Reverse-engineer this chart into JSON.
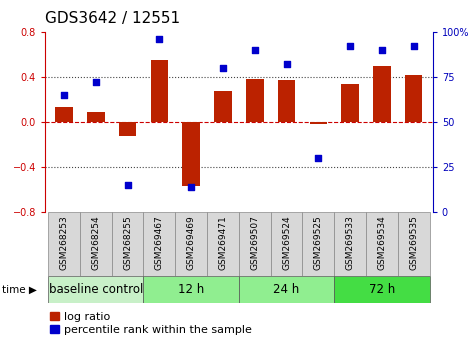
{
  "title": "GDS3642 / 12551",
  "samples": [
    "GSM268253",
    "GSM268254",
    "GSM268255",
    "GSM269467",
    "GSM269469",
    "GSM269471",
    "GSM269507",
    "GSM269524",
    "GSM269525",
    "GSM269533",
    "GSM269534",
    "GSM269535"
  ],
  "log_ratio": [
    0.13,
    0.09,
    -0.12,
    0.55,
    -0.57,
    0.28,
    0.38,
    0.37,
    -0.02,
    0.34,
    0.5,
    0.42
  ],
  "percentile_rank": [
    65,
    72,
    15,
    96,
    14,
    80,
    90,
    82,
    30,
    92,
    90,
    92
  ],
  "groups": [
    {
      "label": "baseline control",
      "start": 0,
      "end": 3,
      "color": "#c8f0c8"
    },
    {
      "label": "12 h",
      "start": 3,
      "end": 6,
      "color": "#90ee90"
    },
    {
      "label": "24 h",
      "start": 6,
      "end": 9,
      "color": "#90ee90"
    },
    {
      "label": "72 h",
      "start": 9,
      "end": 12,
      "color": "#44dd44"
    }
  ],
  "bar_color": "#bb2200",
  "dot_color": "#0000cc",
  "ylim_left": [
    -0.8,
    0.8
  ],
  "ylim_right": [
    0,
    100
  ],
  "yticks_left": [
    -0.8,
    -0.4,
    0.0,
    0.4,
    0.8
  ],
  "yticks_right": [
    0,
    25,
    50,
    75,
    100
  ],
  "ytick_labels_right": [
    "0",
    "25",
    "50",
    "75",
    "100%"
  ],
  "left_color": "#cc0000",
  "right_color": "#0000bb",
  "hline_color": "#cc0000",
  "dotline_color": "#444444",
  "title_fontsize": 11,
  "tick_fontsize": 7,
  "label_fontsize": 6.5,
  "group_fontsize": 8.5,
  "legend_fontsize": 8,
  "sample_box_color": "#d8d8d8",
  "sample_box_edge": "#888888"
}
